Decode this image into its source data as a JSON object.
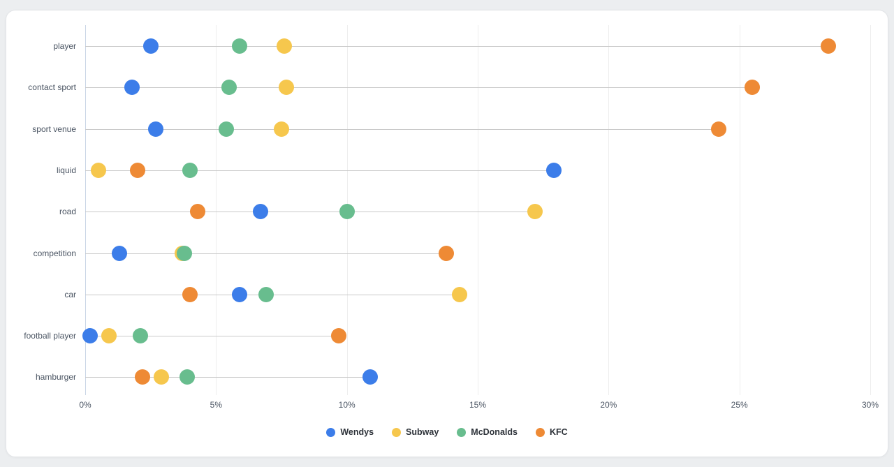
{
  "chart_data": {
    "type": "scatter",
    "orientation": "horizontal",
    "title": "",
    "categories": [
      "player",
      "contact sport",
      "sport venue",
      "liquid",
      "road",
      "competition",
      "car",
      "football player",
      "hamburger"
    ],
    "series": [
      {
        "name": "Wendys",
        "color": "#3C7DE9",
        "values": [
          2.5,
          1.8,
          2.7,
          17.9,
          6.7,
          1.3,
          5.9,
          0.2,
          10.9
        ]
      },
      {
        "name": "Subway",
        "color": "#F6C74D",
        "values": [
          7.6,
          7.7,
          7.5,
          0.5,
          17.2,
          3.7,
          14.3,
          0.9,
          2.9
        ]
      },
      {
        "name": "McDonalds",
        "color": "#68BD8E",
        "values": [
          5.9,
          5.5,
          5.4,
          4.0,
          10.0,
          3.8,
          6.9,
          2.1,
          3.9
        ]
      },
      {
        "name": "KFC",
        "color": "#EE8A35",
        "values": [
          28.4,
          25.5,
          24.2,
          2.0,
          4.3,
          13.8,
          4.0,
          9.7,
          2.2
        ]
      }
    ],
    "x_axis": {
      "min": 0,
      "max": 30,
      "unit": "%",
      "tick_labels": [
        "0%",
        "5%",
        "10%",
        "15%",
        "20%",
        "25%",
        "30%"
      ]
    },
    "grid": true,
    "legend_position": "bottom",
    "legend": [
      "Wendys",
      "Subway",
      "McDonalds",
      "KFC"
    ]
  },
  "style_colors": {
    "card_background": "#ffffff",
    "page_background": "#eceef0",
    "grid_line": "#ededed",
    "zero_axis_line": "#c9d5e6",
    "row_line": "#c9c9c9",
    "label_text": "#4b5563",
    "legend_text": "#2d3239"
  }
}
